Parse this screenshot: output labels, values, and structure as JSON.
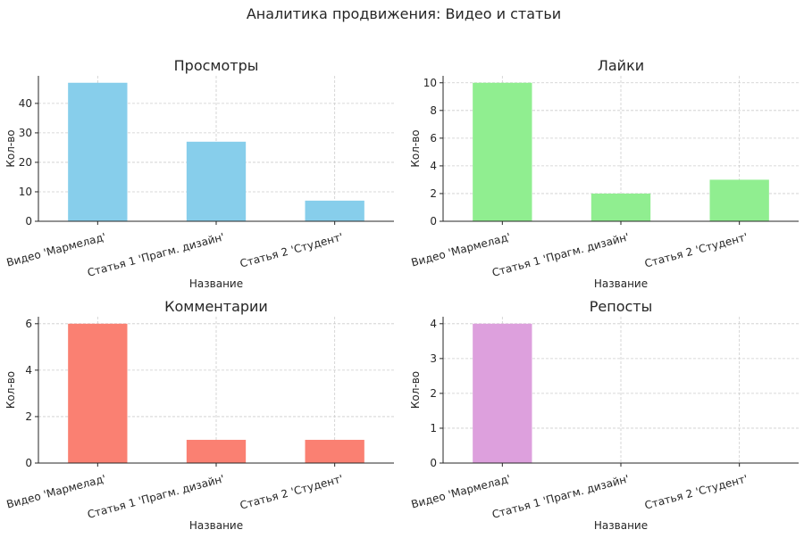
{
  "title": "Аналитика продвижения: Видео и статьи",
  "chart_data": [
    {
      "type": "bar",
      "title": "Просмотры",
      "xlabel": "Название",
      "ylabel": "Кол-во",
      "categories": [
        "Видео 'Мармелад'",
        "Статья 1 'Прагм. дизайн'",
        "Статья 2 'Студент'"
      ],
      "values": [
        47,
        27,
        7
      ],
      "ylim": [
        0,
        49.35
      ],
      "yticks": [
        0,
        10,
        20,
        30,
        40
      ],
      "color": "#87ceeb",
      "grid": true
    },
    {
      "type": "bar",
      "title": "Лайки",
      "xlabel": "Название",
      "ylabel": "Кол-во",
      "categories": [
        "Видео 'Мармелад'",
        "Статья 1 'Прагм. дизайн'",
        "Статья 2 'Студент'"
      ],
      "values": [
        10,
        2,
        3
      ],
      "ylim": [
        0,
        10.5
      ],
      "yticks": [
        0,
        2,
        4,
        6,
        8,
        10
      ],
      "color": "#90ee90",
      "grid": true
    },
    {
      "type": "bar",
      "title": "Комментарии",
      "xlabel": "Название",
      "ylabel": "Кол-во",
      "categories": [
        "Видео 'Мармелад'",
        "Статья 1 'Прагм. дизайн'",
        "Статья 2 'Студент'"
      ],
      "values": [
        6,
        1,
        1
      ],
      "ylim": [
        0,
        6.3
      ],
      "yticks": [
        0,
        2,
        4,
        6
      ],
      "color": "#fa8072",
      "grid": true
    },
    {
      "type": "bar",
      "title": "Репосты",
      "xlabel": "Название",
      "ylabel": "Кол-во",
      "categories": [
        "Видео 'Мармелад'",
        "Статья 1 'Прагм. дизайн'",
        "Статья 2 'Студент'"
      ],
      "values": [
        4,
        0,
        0
      ],
      "ylim": [
        0,
        4.2
      ],
      "yticks": [
        0,
        1,
        2,
        3,
        4
      ],
      "color": "#dda0dd",
      "grid": true
    }
  ]
}
